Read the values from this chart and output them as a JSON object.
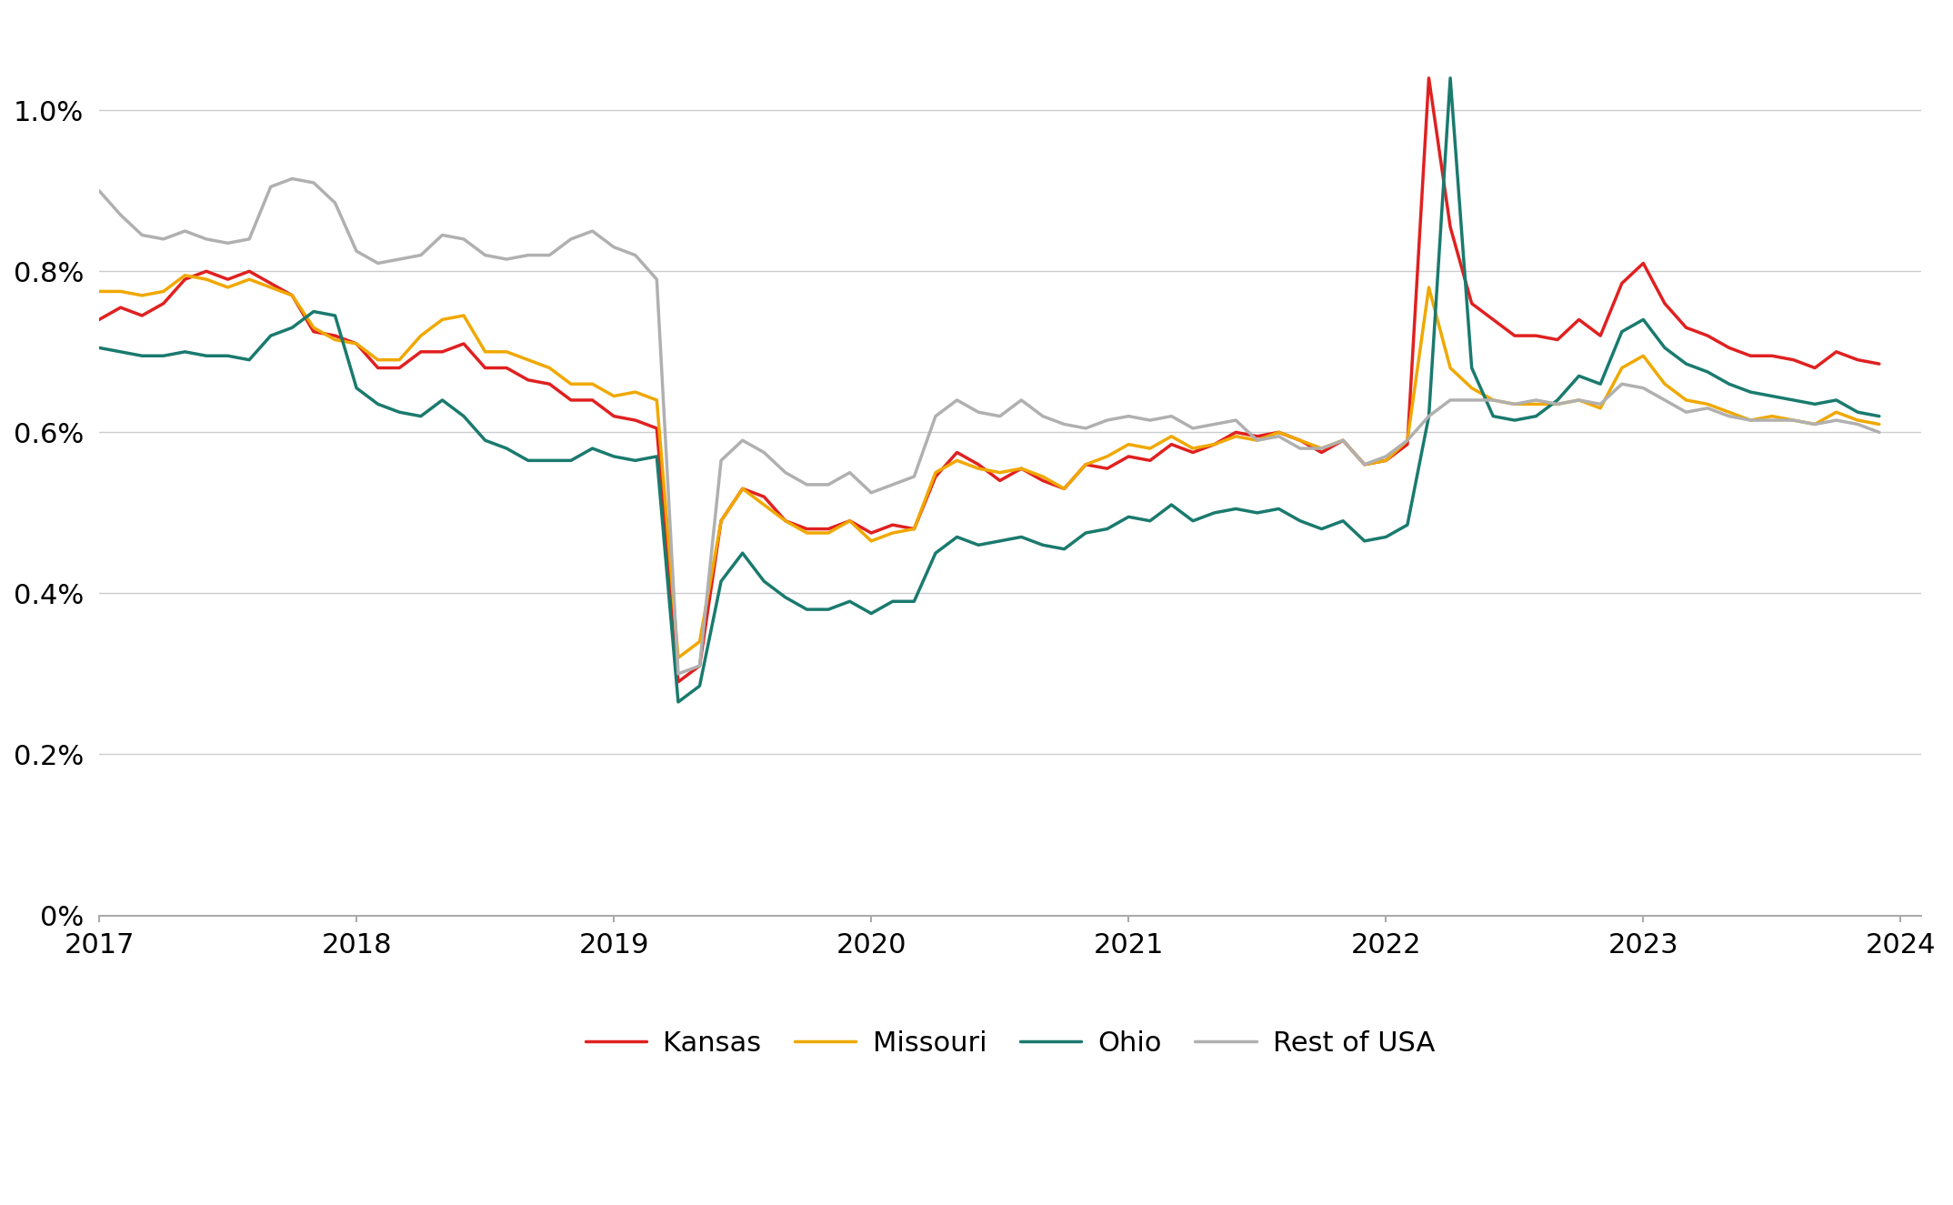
{
  "background_color": "#ffffff",
  "line_colors": {
    "Kansas": "#e02020",
    "Missouri": "#f0a800",
    "Ohio": "#1a7a6e",
    "Rest of USA": "#b0b0b0"
  },
  "line_widths": {
    "Kansas": 2.5,
    "Missouri": 2.5,
    "Ohio": 2.5,
    "Rest of USA": 2.5
  },
  "ylim": [
    0.0,
    1.12
  ],
  "yticks": [
    0.0,
    0.2,
    0.4,
    0.6,
    0.8,
    1.0
  ],
  "xlim_start": 2017.0,
  "xlim_end": 2024.08,
  "xticks": [
    2017,
    2018,
    2019,
    2020,
    2021,
    2022,
    2023,
    2024
  ],
  "legend_labels": [
    "Kansas",
    "Missouri",
    "Ohio",
    "Rest of USA"
  ],
  "Kansas": [
    0.74,
    0.755,
    0.745,
    0.76,
    0.79,
    0.8,
    0.79,
    0.8,
    0.785,
    0.77,
    0.725,
    0.72,
    0.71,
    0.68,
    0.68,
    0.7,
    0.7,
    0.71,
    0.68,
    0.68,
    0.665,
    0.66,
    0.64,
    0.64,
    0.62,
    0.615,
    0.605,
    0.29,
    0.31,
    0.49,
    0.53,
    0.52,
    0.49,
    0.48,
    0.48,
    0.49,
    0.475,
    0.485,
    0.48,
    0.545,
    0.575,
    0.56,
    0.54,
    0.555,
    0.54,
    0.53,
    0.56,
    0.555,
    0.57,
    0.565,
    0.585,
    0.575,
    0.585,
    0.6,
    0.595,
    0.6,
    0.59,
    0.575,
    0.59,
    0.56,
    0.565,
    0.585,
    1.04,
    0.855,
    0.76,
    0.74,
    0.72,
    0.72,
    0.715,
    0.74,
    0.72,
    0.785,
    0.81,
    0.76,
    0.73,
    0.72,
    0.705,
    0.695,
    0.695,
    0.69,
    0.68,
    0.7,
    0.69,
    0.685
  ],
  "Missouri": [
    0.775,
    0.775,
    0.77,
    0.775,
    0.795,
    0.79,
    0.78,
    0.79,
    0.78,
    0.77,
    0.73,
    0.715,
    0.71,
    0.69,
    0.69,
    0.72,
    0.74,
    0.745,
    0.7,
    0.7,
    0.69,
    0.68,
    0.66,
    0.66,
    0.645,
    0.65,
    0.64,
    0.32,
    0.34,
    0.49,
    0.53,
    0.51,
    0.49,
    0.475,
    0.475,
    0.49,
    0.465,
    0.475,
    0.48,
    0.55,
    0.565,
    0.555,
    0.55,
    0.555,
    0.545,
    0.53,
    0.56,
    0.57,
    0.585,
    0.58,
    0.595,
    0.58,
    0.585,
    0.595,
    0.59,
    0.6,
    0.59,
    0.58,
    0.59,
    0.56,
    0.565,
    0.59,
    0.78,
    0.68,
    0.655,
    0.64,
    0.635,
    0.635,
    0.635,
    0.64,
    0.63,
    0.68,
    0.695,
    0.66,
    0.64,
    0.635,
    0.625,
    0.615,
    0.62,
    0.615,
    0.61,
    0.625,
    0.615,
    0.61
  ],
  "Ohio": [
    0.705,
    0.7,
    0.695,
    0.695,
    0.7,
    0.695,
    0.695,
    0.69,
    0.72,
    0.73,
    0.75,
    0.745,
    0.655,
    0.635,
    0.625,
    0.62,
    0.64,
    0.62,
    0.59,
    0.58,
    0.565,
    0.565,
    0.565,
    0.58,
    0.57,
    0.565,
    0.57,
    0.265,
    0.285,
    0.415,
    0.45,
    0.415,
    0.395,
    0.38,
    0.38,
    0.39,
    0.375,
    0.39,
    0.39,
    0.45,
    0.47,
    0.46,
    0.465,
    0.47,
    0.46,
    0.455,
    0.475,
    0.48,
    0.495,
    0.49,
    0.51,
    0.49,
    0.5,
    0.505,
    0.5,
    0.505,
    0.49,
    0.48,
    0.49,
    0.465,
    0.47,
    0.485,
    0.62,
    1.04,
    0.68,
    0.62,
    0.615,
    0.62,
    0.64,
    0.67,
    0.66,
    0.725,
    0.74,
    0.705,
    0.685,
    0.675,
    0.66,
    0.65,
    0.645,
    0.64,
    0.635,
    0.64,
    0.625,
    0.62
  ],
  "Rest of USA": [
    0.9,
    0.87,
    0.845,
    0.84,
    0.85,
    0.84,
    0.835,
    0.84,
    0.905,
    0.915,
    0.91,
    0.885,
    0.825,
    0.81,
    0.815,
    0.82,
    0.845,
    0.84,
    0.82,
    0.815,
    0.82,
    0.82,
    0.84,
    0.85,
    0.83,
    0.82,
    0.79,
    0.3,
    0.31,
    0.565,
    0.59,
    0.575,
    0.55,
    0.535,
    0.535,
    0.55,
    0.525,
    0.535,
    0.545,
    0.62,
    0.64,
    0.625,
    0.62,
    0.64,
    0.62,
    0.61,
    0.605,
    0.615,
    0.62,
    0.615,
    0.62,
    0.605,
    0.61,
    0.615,
    0.59,
    0.595,
    0.58,
    0.58,
    0.59,
    0.56,
    0.57,
    0.59,
    0.62,
    0.64,
    0.64,
    0.64,
    0.635,
    0.64,
    0.635,
    0.64,
    0.635,
    0.66,
    0.655,
    0.64,
    0.625,
    0.63,
    0.62,
    0.615,
    0.615,
    0.615,
    0.61,
    0.615,
    0.61,
    0.6
  ]
}
